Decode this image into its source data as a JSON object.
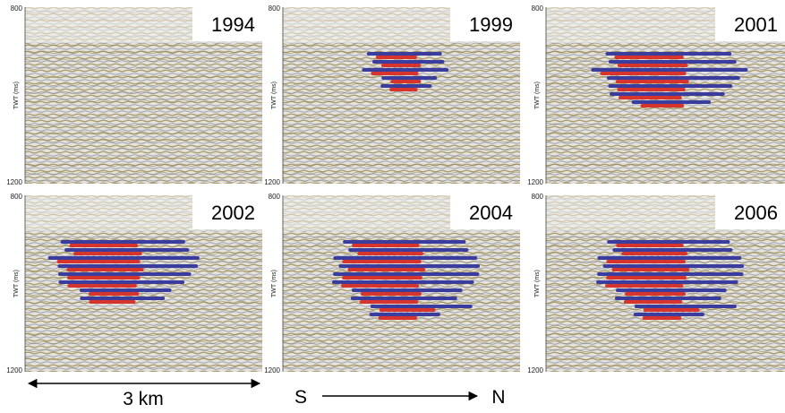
{
  "panels": [
    {
      "year": "1994",
      "ylabel": "TWT (ms)",
      "ticks": [
        800,
        1200
      ]
    },
    {
      "year": "1999",
      "ylabel": "TWT (ms)",
      "ticks": [
        800,
        1200
      ]
    },
    {
      "year": "2001",
      "ylabel": "TWT (ms)",
      "ticks": [
        800,
        1200
      ]
    },
    {
      "year": "2002",
      "ylabel": "TWT (ms)",
      "ticks": [
        800,
        1200
      ]
    },
    {
      "year": "2004",
      "ylabel": "TWT (ms)",
      "ticks": [
        800,
        1200
      ]
    },
    {
      "year": "2006",
      "ylabel": "TWT (ms)",
      "ticks": [
        800,
        1200
      ]
    }
  ],
  "scale": "3 km",
  "direction": {
    "from": "S",
    "to": "N"
  }
}
